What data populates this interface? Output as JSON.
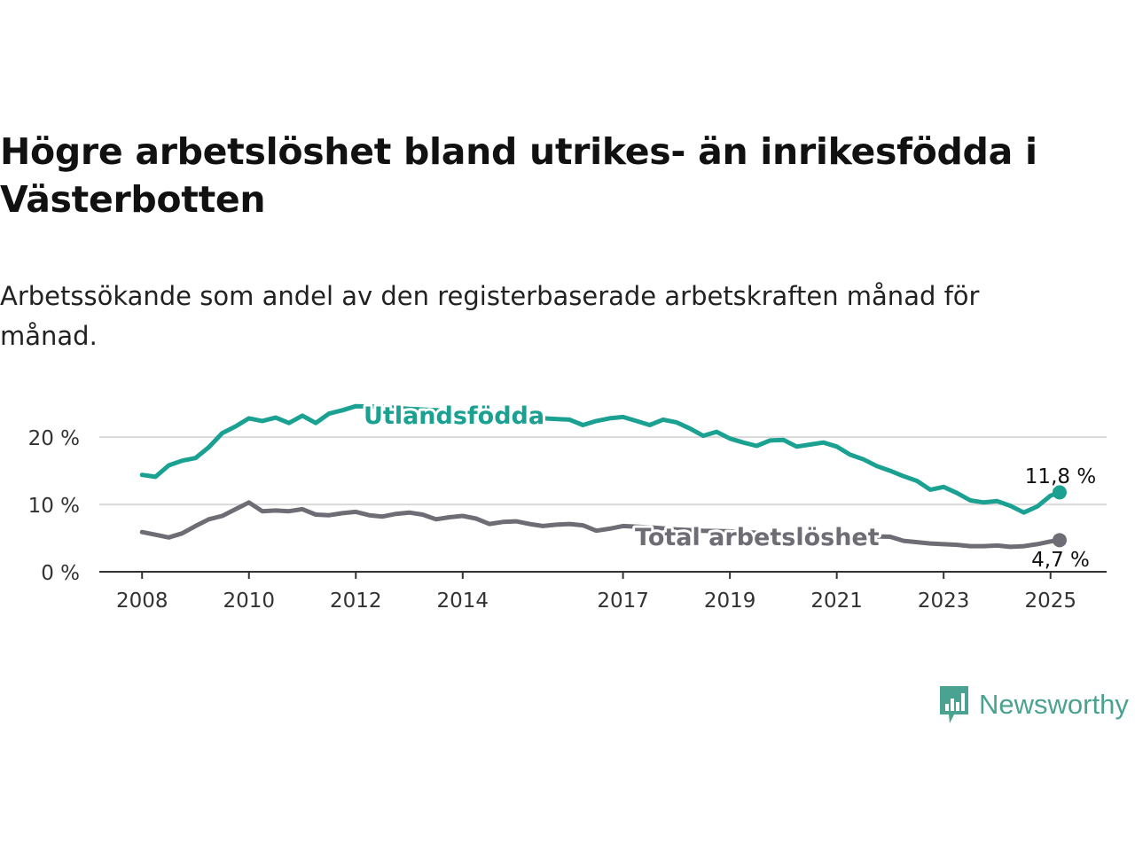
{
  "header": {
    "title": "Högre arbetslöshet bland utrikes- än inrikesfödda i Västerbotten",
    "subtitle": "Arbetssökande som andel av den registerbaserade arbetskraften månad för månad."
  },
  "brand": {
    "name": "Newsworthy",
    "icon": "newsworthy-logo-icon",
    "color": "#4aa390"
  },
  "chart_data": {
    "type": "line",
    "title": "Högre arbetslöshet bland utrikes- än inrikesfödda i Västerbotten",
    "subtitle": "Arbetssökande som andel av den registerbaserade arbetskraften månad för månad.",
    "x_ticks": [
      "2008",
      "2010",
      "2012",
      "2014",
      "2017",
      "2019",
      "2021",
      "2023",
      "2025"
    ],
    "x_tick_values": [
      2008,
      2010,
      2012,
      2014,
      2017,
      2019,
      2021,
      2023,
      2025
    ],
    "y_ticks": [
      "0 %",
      "10 %",
      "20 %"
    ],
    "y_tick_values": [
      0,
      10,
      20
    ],
    "xlim": [
      2007.2,
      2026.05
    ],
    "ylim": [
      0,
      27
    ],
    "grid": true,
    "series": [
      {
        "name": "Utlandsfödda",
        "color": "#1aa191",
        "end_label": "11,8 %",
        "x": [
          2008.0,
          2008.25,
          2008.5,
          2008.75,
          2009.0,
          2009.25,
          2009.5,
          2009.75,
          2010.0,
          2010.25,
          2010.5,
          2010.75,
          2011.0,
          2011.25,
          2011.5,
          2011.75,
          2012.0,
          2012.5,
          2013.0,
          2013.5,
          2014.0,
          2014.5,
          2015.0,
          2015.5,
          2016.0,
          2016.25,
          2016.5,
          2016.75,
          2017.0,
          2017.25,
          2017.5,
          2017.75,
          2018.0,
          2018.25,
          2018.5,
          2018.75,
          2019.0,
          2019.25,
          2019.5,
          2019.75,
          2020.0,
          2020.25,
          2020.5,
          2020.75,
          2021.0,
          2021.25,
          2021.5,
          2021.75,
          2022.0,
          2022.25,
          2022.5,
          2022.75,
          2023.0,
          2023.25,
          2023.5,
          2023.75,
          2024.0,
          2024.25,
          2024.5,
          2024.75,
          2025.0,
          2025.17
        ],
        "y": [
          14.4,
          14.1,
          15.8,
          16.5,
          16.9,
          18.5,
          20.6,
          21.6,
          22.8,
          22.4,
          22.9,
          22.1,
          23.2,
          22.1,
          23.5,
          24.0,
          24.6,
          24.5,
          24.2,
          24.0,
          23.7,
          23.2,
          23.5,
          22.8,
          22.6,
          21.8,
          22.4,
          22.8,
          23.0,
          22.4,
          21.8,
          22.6,
          22.2,
          21.3,
          20.2,
          20.8,
          19.8,
          19.2,
          18.7,
          19.5,
          19.6,
          18.6,
          18.9,
          19.2,
          18.6,
          17.4,
          16.7,
          15.7,
          15.0,
          14.2,
          13.5,
          12.2,
          12.6,
          11.7,
          10.6,
          10.3,
          10.5,
          9.8,
          8.8,
          9.7,
          11.3,
          11.8
        ]
      },
      {
        "name": "Total arbetslöshet",
        "color": "#6e6c74",
        "end_label": "4,7 %",
        "x": [
          2008.0,
          2008.25,
          2008.5,
          2008.75,
          2009.0,
          2009.25,
          2009.5,
          2009.75,
          2010.0,
          2010.25,
          2010.5,
          2010.75,
          2011.0,
          2011.25,
          2011.5,
          2011.75,
          2012.0,
          2012.25,
          2012.5,
          2012.75,
          2013.0,
          2013.25,
          2013.5,
          2013.75,
          2014.0,
          2014.25,
          2014.5,
          2014.75,
          2015.0,
          2015.25,
          2015.5,
          2015.75,
          2016.0,
          2016.25,
          2016.5,
          2016.75,
          2017.0,
          2017.5,
          2018.0,
          2018.5,
          2019.0,
          2019.5,
          2020.0,
          2020.5,
          2021.0,
          2021.5,
          2022.0,
          2022.25,
          2022.5,
          2022.75,
          2023.0,
          2023.25,
          2023.5,
          2023.75,
          2024.0,
          2024.25,
          2024.5,
          2024.75,
          2025.0,
          2025.17
        ],
        "y": [
          5.9,
          5.5,
          5.1,
          5.7,
          6.8,
          7.8,
          8.3,
          9.3,
          10.3,
          9.0,
          9.1,
          9.0,
          9.3,
          8.5,
          8.4,
          8.7,
          8.9,
          8.4,
          8.2,
          8.6,
          8.8,
          8.5,
          7.8,
          8.1,
          8.3,
          7.9,
          7.1,
          7.4,
          7.5,
          7.1,
          6.8,
          7.0,
          7.1,
          6.9,
          6.1,
          6.4,
          6.8,
          6.6,
          6.3,
          6.1,
          6.0,
          5.8,
          5.6,
          5.5,
          5.4,
          5.3,
          5.2,
          4.6,
          4.4,
          4.2,
          4.1,
          4.0,
          3.8,
          3.8,
          3.9,
          3.7,
          3.8,
          4.1,
          4.5,
          4.7
        ]
      }
    ]
  }
}
